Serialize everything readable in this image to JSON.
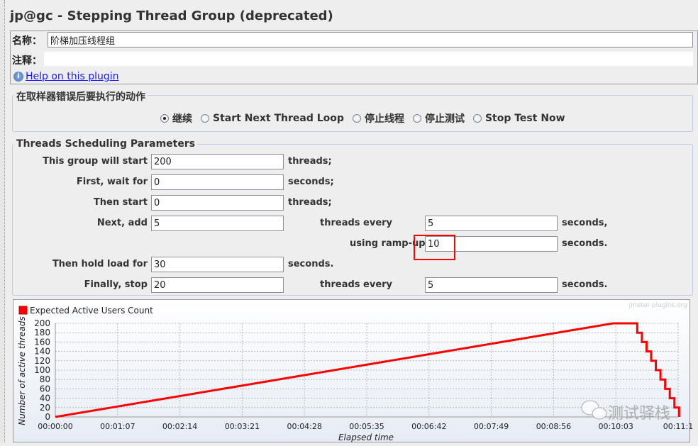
{
  "title": "jp@gc - Stepping Thread Group (deprecated)",
  "name": {
    "label": "名称：",
    "value": "阶梯加压线程组"
  },
  "comment": {
    "label": "注释：",
    "value": ""
  },
  "help_link": "Help on this plugin",
  "error_action": {
    "legend": "在取样器错误后要执行的动作",
    "options": [
      "继续",
      "Start Next Thread Loop",
      "停止线程",
      "停止测试",
      "Stop Test Now"
    ],
    "selected": 0
  },
  "params": {
    "legend": "Threads Scheduling Parameters",
    "start_label": "This group will start",
    "start_value": "200",
    "start_unit": "threads;",
    "wait_label": "First, wait for",
    "wait_value": "0",
    "wait_unit": "seconds;",
    "then_start_label": "Then start",
    "then_start_value": "0",
    "then_start_unit": "threads;",
    "next_add_label": "Next, add",
    "next_add_value": "5",
    "next_every_label": "threads every",
    "next_every_value": "5",
    "next_every_unit": "seconds,",
    "rampup_label": "using ramp-up",
    "rampup_value": "10",
    "rampup_unit": "seconds.",
    "hold_label": "Then hold load for",
    "hold_value": "30",
    "hold_unit": "seconds.",
    "stop_label": "Finally, stop",
    "stop_value": "20",
    "stop_every_label": "threads every",
    "stop_every_value": "5",
    "stop_every_unit": "seconds."
  },
  "highlight_color": "#ff0000",
  "watermark": "测试驿栈",
  "credit": "jmeter-plugins.org",
  "chart_data": {
    "type": "line",
    "legend": "top-left",
    "xlabel": "Elapsed time",
    "ylabel": "Number of active threads",
    "ylim": [
      0,
      200
    ],
    "xlim": [
      0,
      670
    ],
    "grid": true,
    "yticks": [
      0,
      20,
      40,
      60,
      80,
      100,
      120,
      140,
      160,
      180,
      200
    ],
    "xticks": [
      0,
      67,
      134,
      201,
      268,
      335,
      402,
      469,
      536,
      603,
      670
    ],
    "xtick_labels": [
      "00:00:00",
      "00:01:07",
      "00:02:14",
      "00:03:21",
      "00:04:28",
      "00:05:35",
      "00:06:42",
      "00:07:49",
      "00:08:56",
      "00:10:03",
      "00:11:1"
    ],
    "series": [
      {
        "name": "Expected Active Users Count",
        "color": "#ff0000",
        "x": [
          0,
          15,
          30,
          45,
          60,
          75,
          90,
          105,
          120,
          135,
          150,
          165,
          180,
          195,
          210,
          225,
          240,
          255,
          270,
          285,
          300,
          315,
          330,
          345,
          360,
          375,
          390,
          405,
          420,
          435,
          450,
          465,
          480,
          495,
          510,
          525,
          540,
          555,
          570,
          585,
          600,
          626,
          631,
          636,
          641,
          646,
          651,
          656,
          661,
          666,
          671
        ],
        "y": [
          0,
          5,
          10,
          15,
          20,
          25,
          30,
          35,
          40,
          45,
          50,
          55,
          60,
          65,
          70,
          75,
          80,
          85,
          90,
          95,
          100,
          105,
          110,
          115,
          120,
          125,
          130,
          135,
          140,
          145,
          150,
          155,
          160,
          165,
          170,
          175,
          180,
          185,
          190,
          195,
          200,
          180,
          160,
          140,
          120,
          100,
          80,
          60,
          40,
          20,
          0
        ]
      }
    ]
  }
}
